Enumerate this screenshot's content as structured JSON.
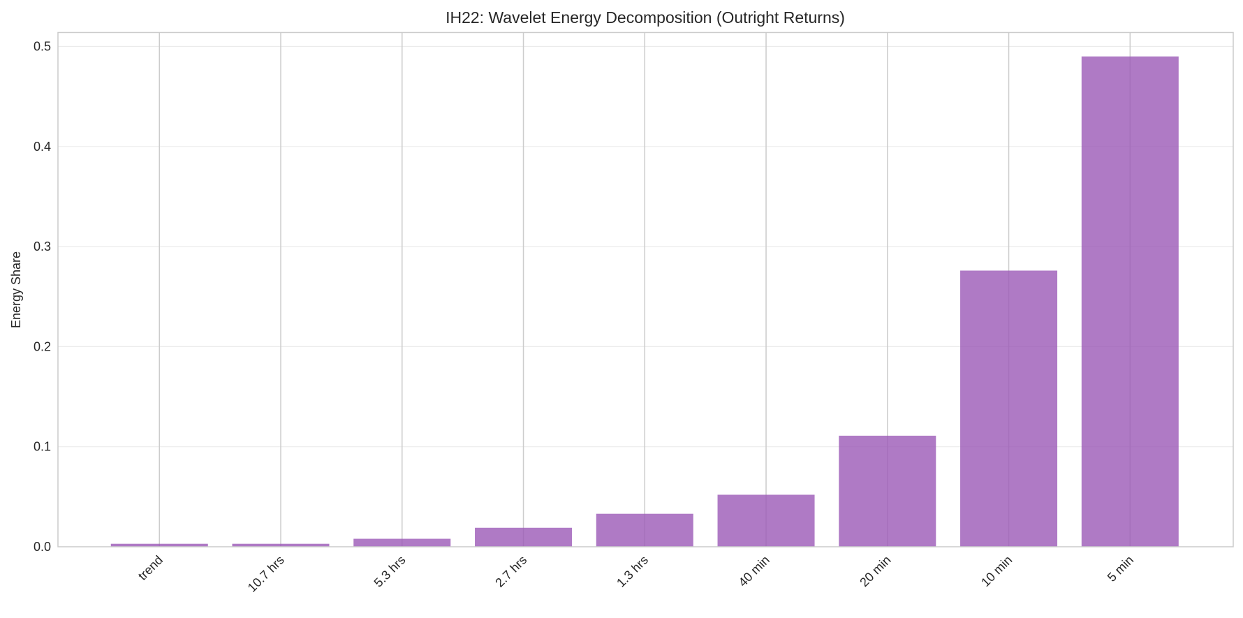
{
  "chart_data": {
    "type": "bar",
    "title": "IH22: Wavelet Energy Decomposition (Outright Returns)",
    "xlabel": "",
    "ylabel": "Energy Share",
    "categories": [
      "trend",
      "10.7 hrs",
      "5.3 hrs",
      "2.7 hrs",
      "1.3 hrs",
      "40 min",
      "20 min",
      "10 min",
      "5 min"
    ],
    "values": [
      0.003,
      0.003,
      0.008,
      0.019,
      0.033,
      0.052,
      0.111,
      0.276,
      0.49
    ],
    "ylim": [
      0,
      0.5145
    ],
    "yticks": [
      "0.0",
      "0.1",
      "0.2",
      "0.3",
      "0.4",
      "0.5"
    ],
    "grid": true,
    "bar_color": "#9b59b6",
    "bar_alpha": 0.8
  }
}
